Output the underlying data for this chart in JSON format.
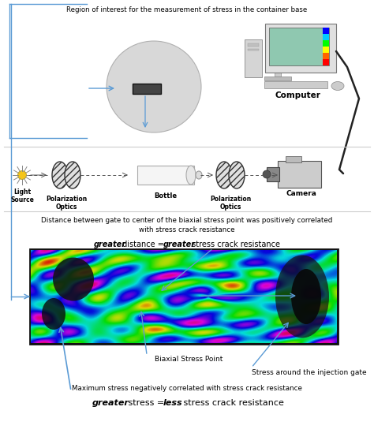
{
  "bg_color": "#ffffff",
  "text_color": "#000000",
  "arrow_color": "#5b9bd5",
  "line_color": "#5b9bd5",
  "top_label": "Region of interest for the measurement of stress in the container base",
  "computer_label": "Computer",
  "light_label": "Light\nSource",
  "pol_optics_label1": "Polarization\nOptics",
  "bottle_label": "Bottle",
  "pol_optics_label2": "Polarization\nOptics",
  "camera_label": "Camera",
  "distance_text_line1": "Distance between gate to center of the biaxial stress point was positively correlated",
  "distance_text_line2": "with stress crack resistance",
  "greater_dist_text1": "greater",
  "greater_dist_text2": " distance = ",
  "greater_dist_text3": "greater",
  "greater_dist_text4": " stress crack resistance",
  "biaxial_label": "Biaxial Stress Point",
  "injection_label": "Stress around the injection gate",
  "max_stress_text": "Maximum stress negatively correlated with stress crack resistance",
  "greater_stress_text1": "greater",
  "greater_stress_text2": " stress = ",
  "greater_stress_text3": "less",
  "greater_stress_text4": " stress crack resistance",
  "figsize": [
    4.74,
    5.63
  ],
  "dpi": 100
}
